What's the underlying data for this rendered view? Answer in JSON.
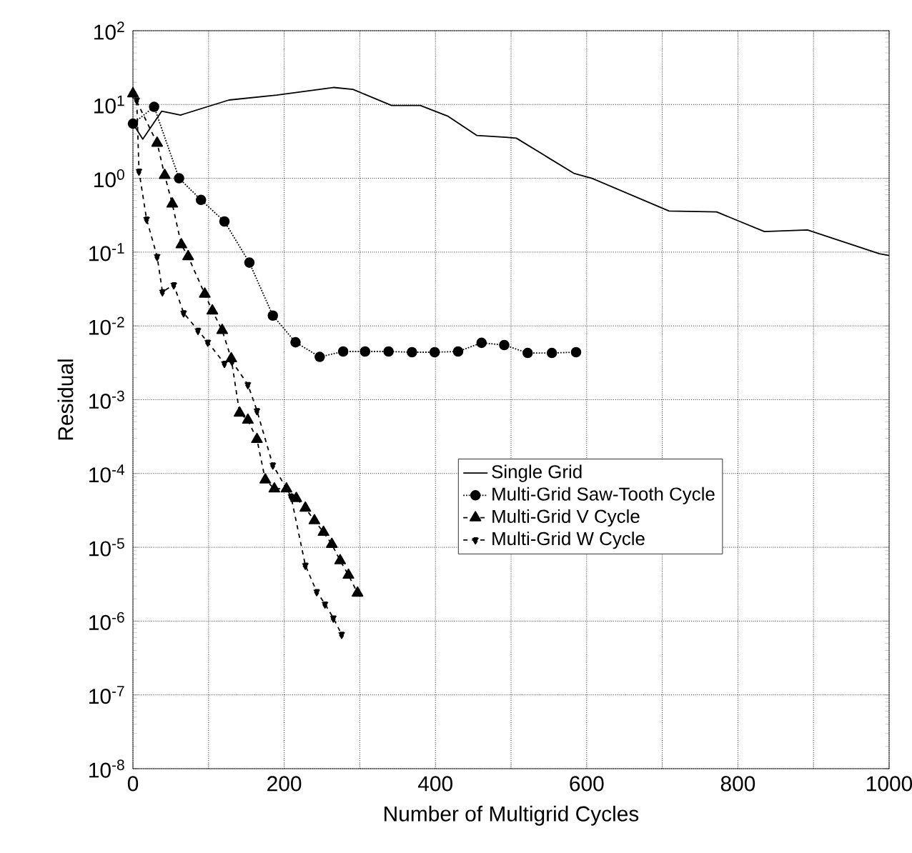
{
  "chart_data": {
    "type": "line",
    "xlabel": "Number of Multigrid Cycles",
    "ylabel": "Residual",
    "log": "y",
    "grid": true,
    "legend": "center right",
    "xlim": [
      0,
      1000
    ],
    "ylim": [
      1e-08,
      100
    ],
    "xticks": [
      0,
      {
        "value": 100,
        "label": null
      },
      200,
      {
        "value": 300,
        "label": null
      },
      400,
      {
        "value": 500,
        "label": null
      },
      600,
      {
        "value": 700,
        "label": null
      },
      800,
      {
        "value": 900,
        "label": null
      },
      1000
    ],
    "yticks": [
      {
        "value": 1e-08,
        "label": "10$^{-8}$"
      },
      {
        "value": 1e-07,
        "label": "10$^{-7}$"
      },
      {
        "value": 1e-06,
        "label": "10$^{-6}$"
      },
      {
        "value": 1e-05,
        "label": "10$^{-5}$"
      },
      {
        "value": 0.0001,
        "label": "10$^{-4}$"
      },
      {
        "value": 0.001,
        "label": "10$^{-3}$"
      },
      {
        "value": 0.01,
        "label": "10$^{-2}$"
      },
      {
        "value": 0.1,
        "label": "10$^{-1}$"
      },
      {
        "value": 1,
        "label": "10$^{0}$"
      },
      {
        "value": 10,
        "label": "10$^{1}$"
      },
      {
        "value": 100,
        "label": "10$^{2}$"
      }
    ],
    "series": [
      {
        "name": "Single Grid",
        "color": "#000000",
        "line_style": "solid",
        "marker": "none",
        "x": [
          0,
          13,
          38,
          63,
          127,
          190,
          266,
          291,
          342,
          380,
          417,
          455,
          493,
          507,
          583,
          607,
          709,
          772,
          835,
          892,
          987,
          1000
        ],
        "values": [
          5.5,
          3.4,
          8.1,
          7.2,
          11.5,
          13.4,
          17,
          16,
          9.7,
          9.7,
          6.9,
          3.8,
          3.6,
          3.5,
          1.17,
          1.0,
          0.36,
          0.35,
          0.19,
          0.2,
          0.095,
          0.09
        ]
      },
      {
        "name": "Multi-Grid Saw-Tooth Cycle",
        "color": "#000000",
        "line_style": "dotted",
        "marker": "circle",
        "x": [
          0,
          28,
          61,
          90,
          121,
          154,
          185,
          215,
          247,
          278,
          307,
          338,
          369,
          399,
          430,
          461,
          491,
          522,
          554,
          586
        ],
        "values": [
          5.5,
          9.3,
          1.0,
          0.51,
          0.26,
          0.072,
          0.0138,
          0.006,
          0.0038,
          0.0045,
          0.0045,
          0.0045,
          0.0044,
          0.0044,
          0.0045,
          0.0059,
          0.0055,
          0.0043,
          0.0043,
          0.0044
        ]
      },
      {
        "name": "Multi-Grid V Cycle",
        "color": "#000000",
        "line_style": "dashed",
        "marker": "triangle",
        "x": [
          0,
          32,
          42,
          52,
          64,
          73,
          95,
          105,
          118,
          130,
          141,
          152,
          164,
          175,
          187,
          203,
          216,
          228,
          240,
          252,
          263,
          274,
          285,
          297
        ],
        "values": [
          14,
          3.0,
          1.1,
          0.45,
          0.126,
          0.087,
          0.027,
          0.016,
          0.0087,
          0.0036,
          0.00066,
          0.00053,
          0.00029,
          8.2e-05,
          6.2e-05,
          6.2e-05,
          4.6e-05,
          3.4e-05,
          2.3e-05,
          1.6e-05,
          1.1e-05,
          6.6e-06,
          4.2e-06,
          2.4e-06
        ]
      },
      {
        "name": "Multi-Grid W Cycle",
        "color": "#000000",
        "line_style": "dashed",
        "marker": "triangle down",
        "x": [
          0,
          5,
          8,
          18,
          32,
          39,
          54,
          67,
          86,
          99,
          121,
          131,
          152,
          164,
          185,
          209,
          228,
          243,
          254,
          265,
          276
        ],
        "values": [
          14,
          11.5,
          1.25,
          0.28,
          0.087,
          0.029,
          0.036,
          0.015,
          0.0087,
          0.006,
          0.0031,
          0.0033,
          0.0016,
          0.00071,
          0.00013,
          4.9e-05,
          5.7e-06,
          2.5e-06,
          1.7e-06,
          1.1e-06,
          6.6e-07
        ]
      }
    ]
  }
}
